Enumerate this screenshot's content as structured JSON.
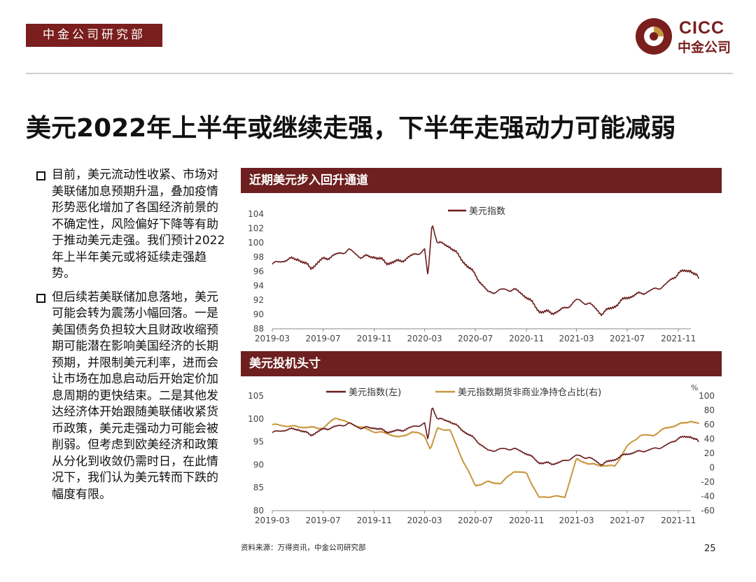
{
  "header": {
    "dept_label": "中金公司研究部",
    "logo_text": "CICC",
    "logo_cn": "中金公司"
  },
  "page_title": "美元2022年上半年或继续走强，下半年走强动力可能减弱",
  "bullets": [
    "目前，美元流动性收紧、市场对美联储加息预期升温，叠加疫情形势恶化增加了各国经济前景的不确定性，风险偏好下降等有助于推动美元走强。我们预计2022年上半年美元或将延续走强趋势。",
    "但后续若美联储加息落地，美元可能会转为震荡小幅回落。一是美国债务负担较大且财政收缩预期可能潜在影响美国经济的长期预期，并限制美元利率，进而会让市场在加息启动后开始定价加息周期的更快结束。二是其他发达经济体开始跟随美联储收紧货币政策，美元走强动力可能会被削弱。但考虑到欧美经济和政策从分化到收敛仍需时日，在此情况下，我们认为美元转而下跌的幅度有限。"
  ],
  "colors": {
    "brand": "#7a1e1e",
    "dxy": "#6b1b1b",
    "position": "#c8963c"
  },
  "chart_data": [
    {
      "type": "line",
      "panel_title": "近期美元步入回升通道",
      "x_ticks": [
        "2019-03",
        "2019-07",
        "2019-11",
        "2020-03",
        "2020-07",
        "2020-11",
        "2021-03",
        "2021-07",
        "2021-11"
      ],
      "y_ticks": [
        88,
        90,
        92,
        94,
        96,
        98,
        100,
        102,
        104
      ],
      "ylim": [
        88,
        104
      ],
      "xlim": [
        "2019-03",
        "2021-12"
      ],
      "legend_position": "top",
      "series": [
        {
          "name": "美元指数",
          "points": [
            [
              "2019-03",
              97.0
            ],
            [
              "2019-04",
              97.6
            ],
            [
              "2019-05",
              97.8
            ],
            [
              "2019-06",
              96.5
            ],
            [
              "2019-07",
              97.7
            ],
            [
              "2019-08",
              98.3
            ],
            [
              "2019-09",
              99.0
            ],
            [
              "2019-10",
              98.0
            ],
            [
              "2019-11",
              98.1
            ],
            [
              "2019-12",
              97.2
            ],
            [
              "2020-01",
              97.4
            ],
            [
              "2020-02",
              98.2
            ],
            [
              "2020-03",
              99.0
            ],
            [
              "2020-03-09",
              95.2
            ],
            [
              "2020-03-19",
              102.8
            ],
            [
              "2020-04",
              100.0
            ],
            [
              "2020-05",
              99.5
            ],
            [
              "2020-06",
              97.5
            ],
            [
              "2020-07",
              95.5
            ],
            [
              "2020-08",
              93.0
            ],
            [
              "2020-09",
              93.4
            ],
            [
              "2020-10",
              93.5
            ],
            [
              "2020-11",
              92.5
            ],
            [
              "2020-12",
              90.5
            ],
            [
              "2021-01",
              90.2
            ],
            [
              "2021-02",
              90.8
            ],
            [
              "2021-03",
              92.0
            ],
            [
              "2021-04",
              91.5
            ],
            [
              "2021-05",
              90.1
            ],
            [
              "2021-06",
              91.2
            ],
            [
              "2021-07",
              92.4
            ],
            [
              "2021-08",
              92.9
            ],
            [
              "2021-09",
              93.4
            ],
            [
              "2021-10",
              94.1
            ],
            [
              "2021-11",
              95.8
            ],
            [
              "2021-12",
              96.2
            ],
            [
              "2021-12-20",
              95.0
            ]
          ]
        }
      ]
    },
    {
      "type": "line",
      "panel_title": "美元投机头寸",
      "x_ticks": [
        "2019-03",
        "2019-07",
        "2019-11",
        "2020-03",
        "2020-07",
        "2020-11",
        "2021-03",
        "2021-07",
        "2021-11"
      ],
      "y_left_ticks": [
        80,
        85,
        90,
        95,
        100,
        105
      ],
      "y_right_ticks": [
        -60,
        -40,
        -20,
        0,
        20,
        40,
        60,
        80,
        100
      ],
      "y_right_unit": "%",
      "ylim_left": [
        80,
        105
      ],
      "ylim_right": [
        -60,
        100
      ],
      "xlim": [
        "2019-03",
        "2021-12"
      ],
      "legend_position": "top",
      "series": [
        {
          "name": "美元指数(左)",
          "axis": "left",
          "points": [
            [
              "2019-03",
              97.0
            ],
            [
              "2019-04",
              97.6
            ],
            [
              "2019-05",
              97.8
            ],
            [
              "2019-06",
              96.5
            ],
            [
              "2019-07",
              97.7
            ],
            [
              "2019-08",
              98.3
            ],
            [
              "2019-09",
              99.0
            ],
            [
              "2019-10",
              98.0
            ],
            [
              "2019-11",
              98.1
            ],
            [
              "2019-12",
              97.2
            ],
            [
              "2020-01",
              97.4
            ],
            [
              "2020-02",
              98.2
            ],
            [
              "2020-03",
              99.0
            ],
            [
              "2020-03-09",
              95.2
            ],
            [
              "2020-03-19",
              102.8
            ],
            [
              "2020-04",
              100.0
            ],
            [
              "2020-05",
              99.5
            ],
            [
              "2020-06",
              97.5
            ],
            [
              "2020-07",
              95.5
            ],
            [
              "2020-08",
              93.0
            ],
            [
              "2020-09",
              93.4
            ],
            [
              "2020-10",
              93.5
            ],
            [
              "2020-11",
              92.5
            ],
            [
              "2020-12",
              90.5
            ],
            [
              "2021-01",
              90.2
            ],
            [
              "2021-02",
              90.8
            ],
            [
              "2021-03",
              92.0
            ],
            [
              "2021-04",
              91.5
            ],
            [
              "2021-05",
              90.1
            ],
            [
              "2021-06",
              91.2
            ],
            [
              "2021-07",
              92.4
            ],
            [
              "2021-08",
              92.9
            ],
            [
              "2021-09",
              93.4
            ],
            [
              "2021-10",
              94.1
            ],
            [
              "2021-11",
              95.8
            ],
            [
              "2021-12",
              96.2
            ],
            [
              "2021-12-20",
              95.0
            ]
          ]
        },
        {
          "name": "美元指数期货非商业净持仓占比(右)",
          "axis": "right",
          "points": [
            [
              "2019-03",
              60
            ],
            [
              "2019-05",
              57
            ],
            [
              "2019-07",
              55
            ],
            [
              "2019-08",
              70
            ],
            [
              "2019-09",
              62
            ],
            [
              "2019-11",
              50
            ],
            [
              "2019-12",
              48
            ],
            [
              "2020-01",
              42
            ],
            [
              "2020-02",
              50
            ],
            [
              "2020-03",
              45
            ],
            [
              "2020-03-15",
              25
            ],
            [
              "2020-04",
              55
            ],
            [
              "2020-05",
              52
            ],
            [
              "2020-06",
              10
            ],
            [
              "2020-07",
              -25
            ],
            [
              "2020-08",
              -20
            ],
            [
              "2020-09",
              -22
            ],
            [
              "2020-10",
              -5
            ],
            [
              "2020-11",
              -8
            ],
            [
              "2020-12",
              -42
            ],
            [
              "2021-01",
              -40
            ],
            [
              "2021-02",
              -41
            ],
            [
              "2021-03",
              12
            ],
            [
              "2021-04",
              5
            ],
            [
              "2021-05",
              3
            ],
            [
              "2021-06",
              2
            ],
            [
              "2021-07",
              30
            ],
            [
              "2021-08",
              45
            ],
            [
              "2021-09",
              45
            ],
            [
              "2021-10",
              55
            ],
            [
              "2021-11",
              60
            ],
            [
              "2021-12",
              65
            ],
            [
              "2021-12-20",
              61
            ]
          ]
        }
      ]
    }
  ],
  "footer": {
    "source": "资料来源：万得资讯，中金公司研究部",
    "page_number": "25"
  }
}
